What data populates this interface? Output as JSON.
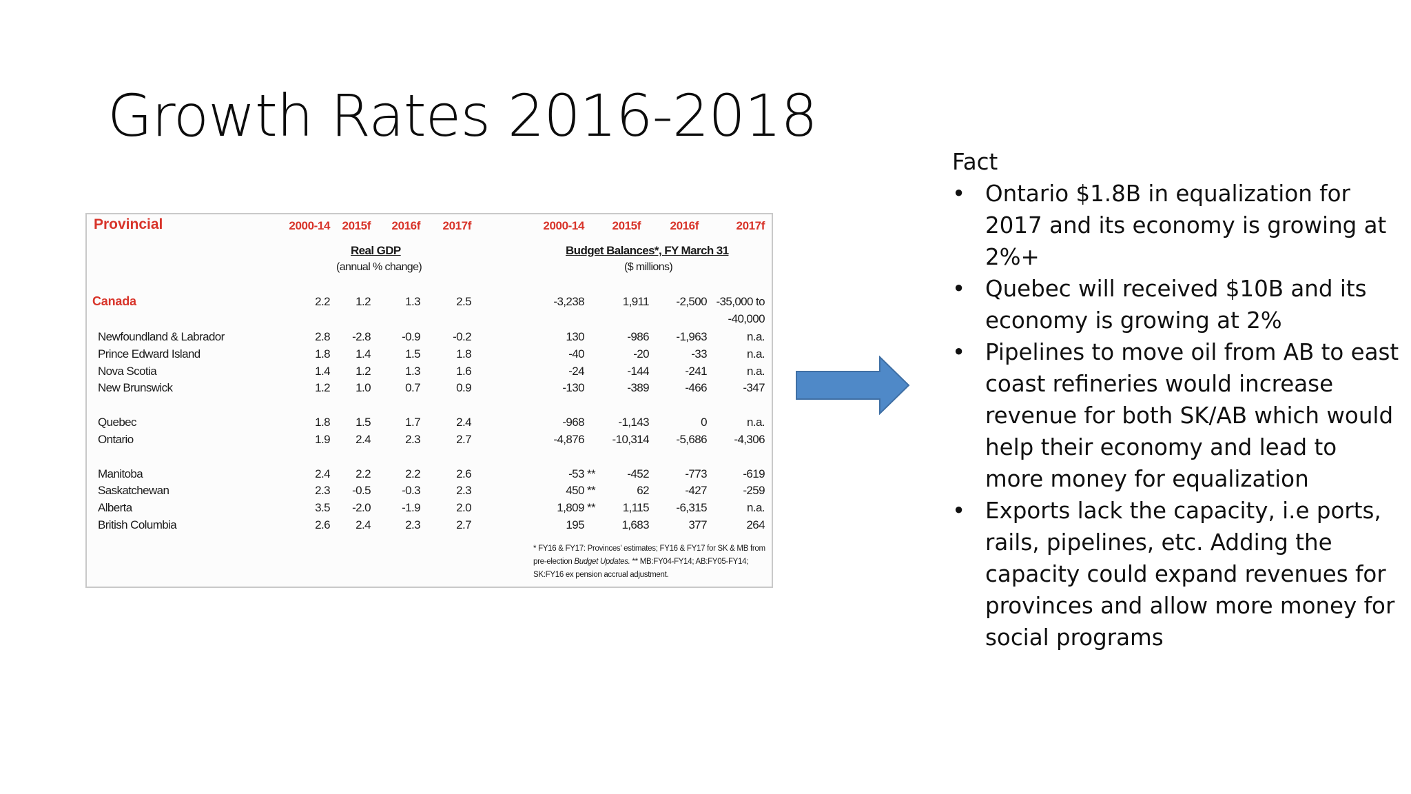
{
  "slide": {
    "title": "Growth Rates 2016-2018"
  },
  "table": {
    "provincial_label": "Provincial",
    "gdp_years": [
      "2000-14",
      "2015f",
      "2016f",
      "2017f"
    ],
    "budget_years": [
      "2000-14",
      "2015f",
      "2016f",
      "2017f"
    ],
    "gdp_title": "Real GDP",
    "gdp_subtitle": "(annual % change)",
    "budget_title": "Budget Balances*, FY March 31",
    "budget_subtitle": "($ millions)",
    "canada": {
      "name": "Canada",
      "gdp": [
        "2.2",
        "1.2",
        "1.3",
        "2.5"
      ],
      "budget": [
        "-3,238",
        "1,911",
        "-2,500",
        "-35,000 to"
      ],
      "budget_cont": "-40,000"
    },
    "rows": [
      {
        "name": "Newfoundland & Labrador",
        "gdp": [
          "2.8",
          "-2.8",
          "-0.9",
          "-0.2"
        ],
        "budget": [
          "130",
          "-986",
          "-1,963",
          "n.a."
        ]
      },
      {
        "name": "Prince Edward Island",
        "gdp": [
          "1.8",
          "1.4",
          "1.5",
          "1.8"
        ],
        "budget": [
          "-40",
          "-20",
          "-33",
          "n.a."
        ]
      },
      {
        "name": "Nova Scotia",
        "gdp": [
          "1.4",
          "1.2",
          "1.3",
          "1.6"
        ],
        "budget": [
          "-24",
          "-144",
          "-241",
          "n.a."
        ]
      },
      {
        "name": "New Brunswick",
        "gdp": [
          "1.2",
          "1.0",
          "0.7",
          "0.9"
        ],
        "budget": [
          "-130",
          "-389",
          "-466",
          "-347"
        ]
      },
      {
        "name": "Quebec",
        "gdp": [
          "1.8",
          "1.5",
          "1.7",
          "2.4"
        ],
        "budget": [
          "-968",
          "-1,143",
          "0",
          "n.a."
        ]
      },
      {
        "name": "Ontario",
        "gdp": [
          "1.9",
          "2.4",
          "2.3",
          "2.7"
        ],
        "budget": [
          "-4,876",
          "-10,314",
          "-5,686",
          "-4,306"
        ]
      },
      {
        "name": "Manitoba",
        "gdp": [
          "2.4",
          "2.2",
          "2.2",
          "2.6"
        ],
        "budget": [
          "-53 **",
          "-452",
          "-773",
          "-619"
        ]
      },
      {
        "name": "Saskatchewan",
        "gdp": [
          "2.3",
          "-0.5",
          "-0.3",
          "2.3"
        ],
        "budget": [
          "450 **",
          "62",
          "-427",
          "-259"
        ]
      },
      {
        "name": "Alberta",
        "gdp": [
          "3.5",
          "-2.0",
          "-1.9",
          "2.0"
        ],
        "budget": [
          "1,809 **",
          "1,115",
          "-6,315",
          "n.a."
        ]
      },
      {
        "name": "British Columbia",
        "gdp": [
          "2.6",
          "2.4",
          "2.3",
          "2.7"
        ],
        "budget": [
          "195",
          "1,683",
          "377",
          "264"
        ]
      }
    ],
    "footnote": {
      "part1": "* FY16 & FY17: Provinces' estimates; FY16 & FY17 for SK & MB from pre-election ",
      "italic": "Budget Updates.",
      "part2": " ** MB:FY04-FY14; AB:FY05-FY14; SK:FY16 ex pension accrual adjustment."
    }
  },
  "arrow": {
    "icon": "right-arrow-icon",
    "fill": "#4f89c8",
    "stroke": "#3f6fa4"
  },
  "facts": {
    "heading": "Fact",
    "bullet": "•",
    "items": [
      "Ontario $1.8B in equalization for 2017 and its economy is growing at 2%+",
      "Quebec will received $10B and its economy is growing at 2%",
      "Pipelines to move oil from AB to east coast refineries would increase revenue for both SK/AB which would help their economy and lead to more money for equalization",
      "Exports lack the capacity, i.e ports, rails, pipelines, etc. Adding the capacity could expand revenues for provinces and allow more money for social programs"
    ]
  }
}
